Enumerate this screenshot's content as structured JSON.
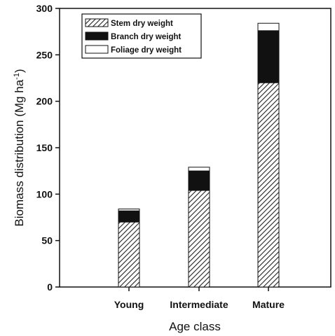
{
  "chart_data": {
    "type": "bar",
    "stacked": true,
    "categories": [
      "Young",
      "Intermediate",
      "Mature"
    ],
    "series": [
      {
        "name": "Stem dry weight",
        "values": [
          70,
          104,
          220
        ],
        "fill": "hatch"
      },
      {
        "name": "Branch dry weight",
        "values": [
          12,
          21,
          56
        ],
        "fill": "#111111"
      },
      {
        "name": "Foliage dry weight",
        "values": [
          2,
          4,
          8
        ],
        "fill": "#ffffff"
      }
    ],
    "xlabel": "Age class",
    "ylabel_main": "Biomass distribution (Mg ha",
    "ylabel_sup": "-1",
    "ylabel_close": ")",
    "ylim": [
      0,
      300
    ],
    "yticks": [
      0,
      50,
      100,
      150,
      200,
      250,
      300
    ],
    "grid": false,
    "legend_position": "top-left"
  }
}
